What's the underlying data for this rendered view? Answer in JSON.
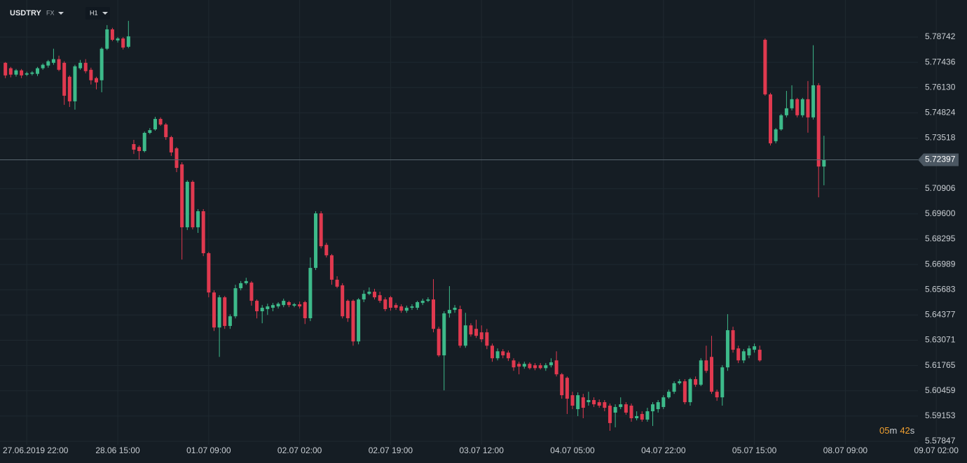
{
  "chart_data": {
    "type": "candlestick",
    "symbol": "USDTRY",
    "market": "FX",
    "interval": "H1",
    "countdown": [
      "05",
      "m",
      "42",
      "s"
    ],
    "up_color": "#3dba8a",
    "down_color": "#e0394f",
    "grid": true,
    "ylim": [
      5.57666,
      5.80658
    ],
    "yticks": [
      5.78742,
      5.77436,
      {
        "value": 5.7613,
        "label": "5.76130"
      },
      5.74824,
      5.73518,
      5.70906,
      {
        "value": 5.696,
        "label": "5.69600"
      },
      5.68295,
      5.66989,
      5.65683,
      5.64377,
      5.63071,
      5.61765,
      5.60459,
      5.59153,
      5.57847
    ],
    "categories": [
      null,
      null,
      null,
      null,
      "27.06.2019  22:00",
      null,
      null,
      null,
      null,
      null,
      null,
      null,
      null,
      null,
      null,
      null,
      null,
      null,
      null,
      null,
      null,
      "28.06  15:00",
      null,
      null,
      null,
      null,
      null,
      null,
      null,
      null,
      null,
      null,
      null,
      null,
      null,
      null,
      null,
      null,
      "01.07  09:00",
      null,
      null,
      null,
      null,
      null,
      null,
      null,
      null,
      null,
      null,
      null,
      null,
      null,
      null,
      null,
      null,
      "02.07  02:00",
      null,
      null,
      null,
      null,
      null,
      null,
      null,
      null,
      null,
      null,
      null,
      null,
      null,
      null,
      null,
      null,
      "02.07  19:00",
      null,
      null,
      null,
      null,
      null,
      null,
      null,
      null,
      null,
      null,
      null,
      null,
      null,
      null,
      null,
      null,
      "03.07  12:00",
      null,
      null,
      null,
      null,
      null,
      null,
      null,
      null,
      null,
      null,
      null,
      null,
      null,
      null,
      null,
      null,
      "04.07  05:00",
      null,
      null,
      null,
      null,
      null,
      null,
      null,
      null,
      null,
      null,
      null,
      null,
      null,
      null,
      null,
      null,
      "04.07  22:00",
      null,
      null,
      null,
      null,
      null,
      null,
      null,
      null,
      null,
      null,
      null,
      null,
      null,
      null,
      null,
      null,
      "05.07  15:00",
      null,
      null,
      null,
      null,
      null,
      null,
      null,
      null,
      null,
      null,
      null,
      null,
      null,
      null,
      null,
      null,
      "08.07  09:00",
      null,
      null,
      null,
      null,
      null,
      null,
      null,
      null,
      null,
      null,
      null,
      null,
      null,
      null,
      null,
      null,
      "09.07  02:00"
    ],
    "ohlc": [
      [
        5.7741,
        5.7745,
        5.7662,
        5.7676
      ],
      [
        5.7713,
        5.772,
        5.7666,
        5.768
      ],
      [
        5.768,
        5.7709,
        5.767,
        5.7702
      ],
      [
        5.7702,
        5.7709,
        5.7662,
        5.7676
      ],
      [
        5.768,
        5.7695,
        5.7673,
        5.7687
      ],
      [
        5.7684,
        5.7698,
        5.7676,
        5.7691
      ],
      [
        5.7684,
        5.772,
        5.7673,
        5.7713
      ],
      [
        5.7713,
        5.7738,
        5.7705,
        5.7731
      ],
      [
        5.7727,
        5.7756,
        5.7716,
        5.7749
      ],
      [
        5.7741,
        5.7814,
        5.7731,
        5.776
      ],
      [
        5.776,
        5.7778,
        5.7698,
        5.7705
      ],
      [
        5.7741,
        5.7749,
        5.7524,
        5.7571
      ],
      [
        5.7669,
        5.7676,
        5.7513,
        5.7542
      ],
      [
        5.7542,
        5.7731,
        5.7499,
        5.7723
      ],
      [
        5.7713,
        5.7756,
        5.7705,
        5.7741
      ],
      [
        5.7741,
        5.776,
        5.7687,
        5.7698
      ],
      [
        5.7705,
        5.7716,
        5.7629,
        5.7651
      ],
      [
        5.7662,
        5.7669,
        5.7604,
        5.764
      ],
      [
        5.7651,
        5.7821,
        5.7589,
        5.7814
      ],
      [
        5.7814,
        5.7936,
        5.7807,
        5.7914
      ],
      [
        5.7914,
        5.7922,
        5.7853,
        5.786
      ],
      [
        5.7857,
        5.7874,
        5.7846,
        5.7867
      ],
      [
        5.7867,
        5.7874,
        5.781,
        5.782
      ],
      [
        5.7824,
        5.7958,
        5.7817,
        5.7878
      ],
      [
        5.7321,
        5.7343,
        5.727,
        5.7292
      ],
      [
        5.7306,
        5.7314,
        5.7238,
        5.7285
      ],
      [
        5.7285,
        5.7386,
        5.7278,
        5.7379
      ],
      [
        5.7379,
        5.7404,
        5.7372,
        5.7393
      ],
      [
        5.7397,
        5.7462,
        5.739,
        5.7451
      ],
      [
        5.7451,
        5.7459,
        5.7415,
        5.7422
      ],
      [
        5.7422,
        5.743,
        5.7343,
        5.7357
      ],
      [
        5.7357,
        5.7364,
        5.726,
        5.7278
      ],
      [
        5.7299,
        5.7306,
        5.7176,
        5.7198
      ],
      [
        5.7216,
        5.7227,
        5.6724,
        5.6891
      ],
      [
        5.6891,
        5.7134,
        5.6877,
        5.7126
      ],
      [
        5.7126,
        5.7134,
        5.688,
        5.6891
      ],
      [
        5.6891,
        5.6985,
        5.6862,
        5.6974
      ],
      [
        5.6974,
        5.6985,
        5.6742,
        5.6757
      ],
      [
        5.6757,
        5.6764,
        5.6529,
        5.6554
      ],
      [
        5.6554,
        5.6565,
        5.6355,
        5.6373
      ],
      [
        5.6373,
        5.654,
        5.6221,
        5.6529
      ],
      [
        5.6529,
        5.6536,
        5.6366,
        5.6381
      ],
      [
        5.6381,
        5.6441,
        5.6366,
        5.6431
      ],
      [
        5.6431,
        5.6594,
        5.642,
        5.6576
      ],
      [
        5.6576,
        5.6613,
        5.6565,
        5.6602
      ],
      [
        5.6602,
        5.663,
        5.6594,
        5.6613
      ],
      [
        5.6605,
        5.6613,
        5.6486,
        5.6511
      ],
      [
        5.6511,
        5.6518,
        5.642,
        5.6457
      ],
      [
        5.6457,
        5.6489,
        5.6395,
        5.6475
      ],
      [
        5.6468,
        5.6496,
        5.6438,
        5.6482
      ],
      [
        5.6475,
        5.65,
        5.6457,
        5.6489
      ],
      [
        5.6482,
        5.6504,
        5.6471,
        5.6496
      ],
      [
        5.6489,
        5.6522,
        5.6478,
        5.6511
      ],
      [
        5.6504,
        5.6511,
        5.6478,
        5.6489
      ],
      [
        5.6486,
        5.65,
        5.6478,
        5.6493
      ],
      [
        5.6493,
        5.6507,
        5.6471,
        5.6482
      ],
      [
        5.6504,
        5.6511,
        5.6391,
        5.6421
      ],
      [
        5.6421,
        5.6735,
        5.6406,
        5.6681
      ],
      [
        5.6681,
        5.6974,
        5.667,
        5.6963
      ],
      [
        5.6963,
        5.6974,
        5.6782,
        5.6793
      ],
      [
        5.68,
        5.6811,
        5.6735,
        5.6746
      ],
      [
        5.6746,
        5.6753,
        5.6594,
        5.662
      ],
      [
        5.662,
        5.6638,
        5.6576,
        5.6584
      ],
      [
        5.6591,
        5.6602,
        5.642,
        5.6431
      ],
      [
        5.6511,
        5.6518,
        5.6402,
        5.6421
      ],
      [
        5.6511,
        5.6518,
        5.6279,
        5.6301
      ],
      [
        5.6301,
        5.6525,
        5.6286,
        5.6518
      ],
      [
        5.6518,
        5.6565,
        5.6504,
        5.6547
      ],
      [
        5.6547,
        5.658,
        5.654,
        5.6558
      ],
      [
        5.6558,
        5.6573,
        5.6518,
        5.6529
      ],
      [
        5.654,
        5.6558,
        5.65,
        5.6511
      ],
      [
        5.6518,
        5.6529,
        5.6457,
        5.6468
      ],
      [
        5.6529,
        5.6536,
        5.646,
        5.6475
      ],
      [
        5.6489,
        5.65,
        5.6464,
        5.6475
      ],
      [
        5.6482,
        5.6493,
        5.6449,
        5.646
      ],
      [
        5.646,
        5.6486,
        5.6449,
        5.6475
      ],
      [
        5.6475,
        5.6493,
        5.6464,
        5.6482
      ],
      [
        5.6475,
        5.6511,
        5.6464,
        5.6504
      ],
      [
        5.65,
        5.6522,
        5.6489,
        5.6511
      ],
      [
        5.6511,
        5.6529,
        5.6504,
        5.6518
      ],
      [
        5.6518,
        5.6623,
        5.6348,
        5.6366
      ],
      [
        5.6366,
        5.6377,
        5.6221,
        5.6229
      ],
      [
        5.6229,
        5.6457,
        5.6048,
        5.6446
      ],
      [
        5.6446,
        5.6587,
        5.6424,
        5.6464
      ],
      [
        5.6464,
        5.6489,
        5.6449,
        5.6475
      ],
      [
        5.6468,
        5.6486,
        5.6268,
        5.6279
      ],
      [
        5.6279,
        5.6449,
        5.6268,
        5.6384
      ],
      [
        5.6384,
        5.6395,
        5.6326,
        5.6337
      ],
      [
        5.6366,
        5.6413,
        5.6319,
        5.633
      ],
      [
        5.6348,
        5.6384,
        5.6297,
        5.6312
      ],
      [
        5.6348,
        5.6366,
        5.6261,
        5.6279
      ],
      [
        5.6279,
        5.629,
        5.6196,
        5.6214
      ],
      [
        5.6214,
        5.6265,
        5.6203,
        5.625
      ],
      [
        5.625,
        5.6261,
        5.6214,
        5.6229
      ],
      [
        5.6243,
        5.6254,
        5.62,
        5.6214
      ],
      [
        5.6203,
        5.6214,
        5.6149,
        5.6167
      ],
      [
        5.6185,
        5.6196,
        5.6131,
        5.6171
      ],
      [
        5.6171,
        5.6196,
        5.616,
        5.6185
      ],
      [
        5.6185,
        5.6193,
        5.6156,
        5.6163
      ],
      [
        5.6178,
        5.6189,
        5.6152,
        5.6163
      ],
      [
        5.6178,
        5.6189,
        5.6156,
        5.6163
      ],
      [
        5.6163,
        5.6189,
        5.6149,
        5.6178
      ],
      [
        5.6178,
        5.6214,
        5.6167,
        5.6193
      ],
      [
        5.6203,
        5.625,
        5.612,
        5.6131
      ],
      [
        5.6131,
        5.6138,
        5.6005,
        5.6023
      ],
      [
        5.6113,
        5.612,
        5.5926,
        5.6005
      ],
      [
        5.6023,
        5.6041,
        5.5951,
        5.5969
      ],
      [
        5.5951,
        5.6038,
        5.5915,
        5.6023
      ],
      [
        5.6012,
        5.603,
        5.5904,
        5.5958
      ],
      [
        5.5987,
        5.6041,
        5.5969,
        5.5998
      ],
      [
        5.5998,
        5.6012,
        5.5962,
        5.5976
      ],
      [
        5.5987,
        5.6001,
        5.5958,
        5.5969
      ],
      [
        5.5987,
        5.5998,
        5.594,
        5.5958
      ],
      [
        5.5969,
        5.598,
        5.5839,
        5.5879
      ],
      [
        5.5933,
        5.5976,
        5.5857,
        5.5962
      ],
      [
        5.5962,
        5.6012,
        5.5951,
        5.5976
      ],
      [
        5.5976,
        5.5987,
        5.5922,
        5.5933
      ],
      [
        5.5969,
        5.598,
        5.5886,
        5.5904
      ],
      [
        5.5904,
        5.594,
        5.5893,
        5.5915
      ],
      [
        5.5926,
        5.594,
        5.5886,
        5.5897
      ],
      [
        5.5897,
        5.5958,
        5.5886,
        5.594
      ],
      [
        5.594,
        5.5987,
        5.5864,
        5.5976
      ],
      [
        5.5951,
        5.5998,
        5.5933,
        5.5987
      ],
      [
        5.5962,
        5.6023,
        5.5951,
        5.6012
      ],
      [
        5.6012,
        5.6052,
        5.6005,
        5.6041
      ],
      [
        5.6041,
        5.6095,
        5.603,
        5.6085
      ],
      [
        5.6085,
        5.6106,
        5.6077,
        5.6095
      ],
      [
        5.6095,
        5.6106,
        5.5976,
        5.5987
      ],
      [
        5.5987,
        5.6113,
        5.5969,
        5.6106
      ],
      [
        5.6106,
        5.612,
        5.6066,
        5.6077
      ],
      [
        5.6077,
        5.6214,
        5.607,
        5.6203
      ],
      [
        5.6203,
        5.6279,
        5.6138,
        5.6149
      ],
      [
        5.6221,
        5.633,
        5.603,
        5.6041
      ],
      [
        5.6041,
        5.6052,
        5.5994,
        5.6012
      ],
      [
        5.6012,
        5.6178,
        5.5969,
        5.6167
      ],
      [
        5.6167,
        5.6442,
        5.6149,
        5.6359
      ],
      [
        5.6359,
        5.6377,
        5.6243,
        5.6258
      ],
      [
        5.6265,
        5.6279,
        5.6189,
        5.6203
      ],
      [
        5.6203,
        5.6261,
        5.6189,
        5.625
      ],
      [
        5.6229,
        5.6279,
        5.6214,
        5.6265
      ],
      [
        5.6258,
        5.629,
        5.6243,
        5.6276
      ],
      [
        5.6258,
        5.6279,
        5.6196,
        5.6203
      ],
      [
        5.786,
        5.7867,
        5.7571,
        5.7578
      ],
      [
        5.7578,
        5.7586,
        5.7314,
        5.7325
      ],
      [
        5.7336,
        5.7404,
        5.7325,
        5.7397
      ],
      [
        5.7397,
        5.7477,
        5.739,
        5.747
      ],
      [
        5.747,
        5.7596,
        5.7459,
        5.7506
      ],
      [
        5.7506,
        5.7625,
        5.7495,
        5.7553
      ],
      [
        5.7553,
        5.756,
        5.7459,
        5.747
      ],
      [
        5.747,
        5.756,
        5.7459,
        5.7553
      ],
      [
        5.7553,
        5.7647,
        5.738,
        5.7459
      ],
      [
        5.7459,
        5.7832,
        5.7448,
        5.7625
      ],
      [
        5.7625,
        5.7636,
        5.7046,
        5.7205
      ],
      [
        5.7205,
        5.7364,
        5.7108,
        5.72397
      ],
      null,
      null,
      null,
      null,
      null,
      null,
      null,
      null,
      null,
      null,
      null,
      null,
      null,
      null,
      null,
      null,
      null,
      null,
      null,
      null,
      null
    ]
  }
}
